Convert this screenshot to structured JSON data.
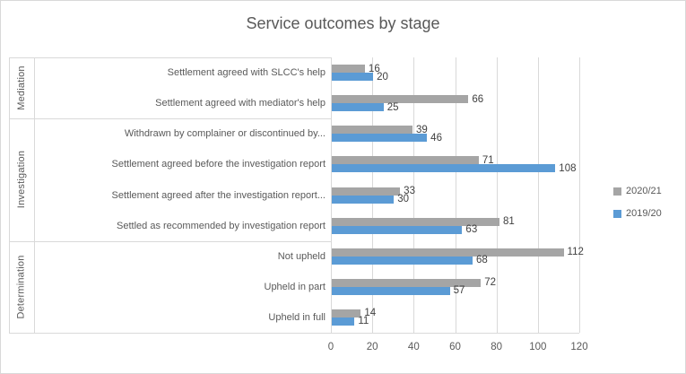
{
  "chart_data": {
    "type": "bar",
    "orientation": "horizontal",
    "title": "Service outcomes by stage",
    "categories": [
      "Settlement agreed with SLCC's help",
      "Settlement agreed with mediator's help",
      "Withdrawn by complainer or discontinued by...",
      "Settlement agreed before the investigation report",
      "Settlement agreed after the investigation report...",
      "Settled as recommended by investigation report",
      "Not upheld",
      "Upheld in part",
      "Upheld in full"
    ],
    "category_groups": [
      {
        "label": "Mediation",
        "span": 2
      },
      {
        "label": "Investigation",
        "span": 4
      },
      {
        "label": "Determination",
        "span": 3
      }
    ],
    "series": [
      {
        "name": "2020/21",
        "color": "#A5A5A5",
        "values": [
          16,
          66,
          39,
          71,
          33,
          81,
          112,
          72,
          14
        ]
      },
      {
        "name": "2019/20",
        "color": "#5B9BD5",
        "values": [
          20,
          25,
          46,
          108,
          30,
          63,
          68,
          57,
          11
        ]
      }
    ],
    "xlim": [
      0,
      120
    ],
    "xticks": [
      0,
      20,
      40,
      60,
      80,
      100,
      120
    ],
    "legend_position": "right",
    "grid": true,
    "colors": {
      "grid": "#D9D9D9",
      "border": "#D9D9D9",
      "axis_text": "#595959",
      "data_label": "#404040",
      "title_text": "#595959"
    }
  }
}
